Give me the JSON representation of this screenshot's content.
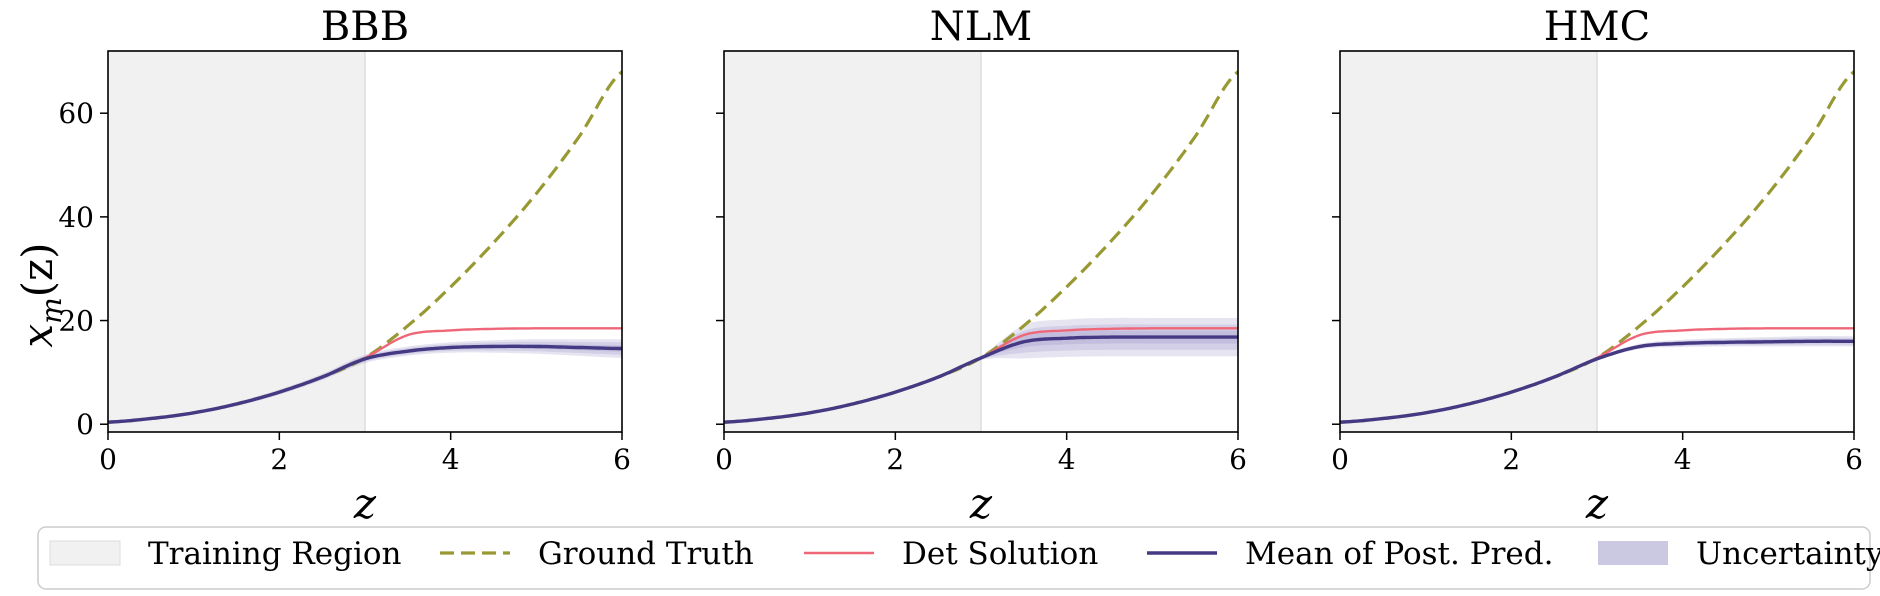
{
  "chart_data": {
    "type": "line",
    "x_range": [
      0,
      6
    ],
    "y_range": [
      0,
      72
    ],
    "training_region": [
      0,
      3
    ],
    "ylabel": {
      "main": "x",
      "sub": "m",
      "arg": "(z)"
    },
    "xlabel": "z",
    "xticks": [
      0,
      2,
      4,
      6
    ],
    "yticks": [
      0,
      20,
      40,
      60
    ],
    "colors": {
      "training": "#f1f1f1",
      "ground_truth": "#999933",
      "det": "#ee6677",
      "mean": "#443a84",
      "uncertainty": "#8b85bd"
    },
    "ground_truth": {
      "x": [
        0,
        0.5,
        1,
        1.5,
        2,
        2.5,
        3,
        3.5,
        4,
        4.5,
        5,
        5.5,
        6
      ],
      "y": [
        0.4,
        1.1,
        2.2,
        3.9,
        6.2,
        9.1,
        12.8,
        19.0,
        26.5,
        35.0,
        44.5,
        55.5,
        68.0
      ]
    },
    "det_solution": {
      "x": [
        0,
        0.5,
        1,
        1.5,
        2,
        2.5,
        3,
        3.5,
        4,
        4.5,
        5,
        5.5,
        6
      ],
      "y": [
        0.4,
        1.1,
        2.2,
        3.9,
        6.2,
        9.1,
        12.8,
        17.2,
        18.1,
        18.4,
        18.5,
        18.5,
        18.5
      ]
    },
    "panels": [
      {
        "title": "BBB",
        "mean": {
          "x": [
            0,
            0.5,
            1,
            1.5,
            2,
            2.5,
            3,
            3.5,
            4,
            4.5,
            5,
            5.5,
            6
          ],
          "y": [
            0.4,
            1.1,
            2.2,
            3.9,
            6.2,
            9.1,
            12.6,
            14.1,
            14.8,
            15.0,
            15.0,
            14.8,
            14.6
          ]
        },
        "uncertainty": {
          "x": [
            0,
            0.5,
            1,
            1.5,
            2,
            2.5,
            3,
            3.5,
            4,
            4.5,
            5,
            5.5,
            6
          ],
          "band_half_width": [
            0.2,
            0.25,
            0.3,
            0.4,
            0.5,
            0.6,
            0.8,
            0.9,
            1.0,
            1.2,
            1.4,
            1.6,
            1.8
          ]
        }
      },
      {
        "title": "NLM",
        "mean": {
          "x": [
            0,
            0.5,
            1,
            1.5,
            2,
            2.5,
            3,
            3.5,
            4,
            4.5,
            5,
            5.5,
            6
          ],
          "y": [
            0.4,
            1.1,
            2.2,
            3.9,
            6.2,
            9.1,
            12.8,
            15.9,
            16.6,
            16.8,
            16.8,
            16.8,
            16.8
          ]
        },
        "uncertainty": {
          "x": [
            0,
            0.5,
            1,
            1.5,
            2,
            2.5,
            3,
            3.5,
            4,
            4.5,
            5,
            5.5,
            6
          ],
          "band_half_width": [
            0.1,
            0.1,
            0.1,
            0.1,
            0.1,
            0.15,
            0.4,
            3.2,
            3.6,
            3.7,
            3.7,
            3.7,
            3.7
          ]
        }
      },
      {
        "title": "HMC",
        "mean": {
          "x": [
            0,
            0.5,
            1,
            1.5,
            2,
            2.5,
            3,
            3.5,
            4,
            4.5,
            5,
            5.5,
            6
          ],
          "y": [
            0.4,
            1.1,
            2.2,
            3.9,
            6.2,
            9.1,
            12.6,
            15.0,
            15.6,
            15.8,
            15.9,
            16.0,
            16.0
          ]
        },
        "uncertainty": {
          "x": [
            0,
            0.5,
            1,
            1.5,
            2,
            2.5,
            3,
            3.5,
            4,
            4.5,
            5,
            5.5,
            6
          ],
          "band_half_width": [
            0.1,
            0.1,
            0.1,
            0.1,
            0.15,
            0.2,
            0.3,
            0.5,
            0.7,
            0.8,
            0.9,
            1.0,
            1.0
          ]
        }
      }
    ],
    "legend": {
      "placement": "bottom",
      "entries": [
        {
          "key": "training",
          "label": "Training Region"
        },
        {
          "key": "ground_truth",
          "label": "Ground Truth"
        },
        {
          "key": "det",
          "label": "Det Solution"
        },
        {
          "key": "mean",
          "label": "Mean of Post. Pred."
        },
        {
          "key": "uncertainty",
          "label": "Uncertainty"
        }
      ]
    }
  }
}
